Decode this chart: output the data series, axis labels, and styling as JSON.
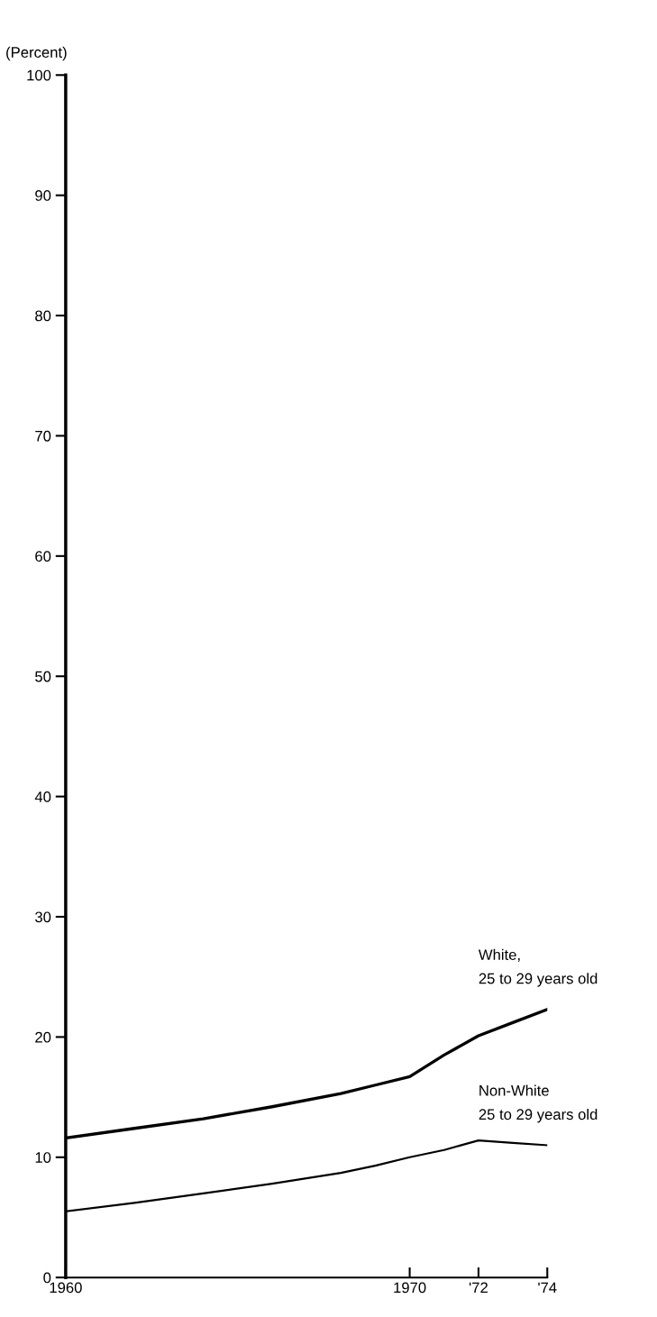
{
  "chart_data": {
    "type": "line",
    "ylabel": "(Percent)",
    "x": [
      1960,
      1962,
      1964,
      1966,
      1968,
      1969,
      1970,
      1971,
      1972,
      1973,
      1974
    ],
    "series": [
      {
        "name": "White,\n25 to 29 years old",
        "color": "#000000",
        "values": [
          11.6,
          12.4,
          13.2,
          14.2,
          15.3,
          16.0,
          16.7,
          18.5,
          20.1,
          21.2,
          22.3
        ]
      },
      {
        "name": "Non-White\n25 to 29 years old",
        "color": "#000000",
        "values": [
          5.5,
          6.2,
          7.0,
          7.8,
          8.7,
          9.3,
          10.0,
          10.6,
          11.4,
          11.2,
          11.0
        ]
      }
    ],
    "xlim": [
      1960,
      1974
    ],
    "ylim": [
      0,
      100
    ],
    "xticks": [
      1960,
      1970,
      {
        "value": 1972,
        "label": "'72"
      },
      {
        "value": 1974,
        "label": "'74"
      }
    ],
    "yticks": [
      0,
      10,
      20,
      30,
      40,
      50,
      60,
      70,
      80,
      90,
      100
    ],
    "grid": false,
    "legend": false,
    "marker": "none",
    "line_style": "solid"
  }
}
